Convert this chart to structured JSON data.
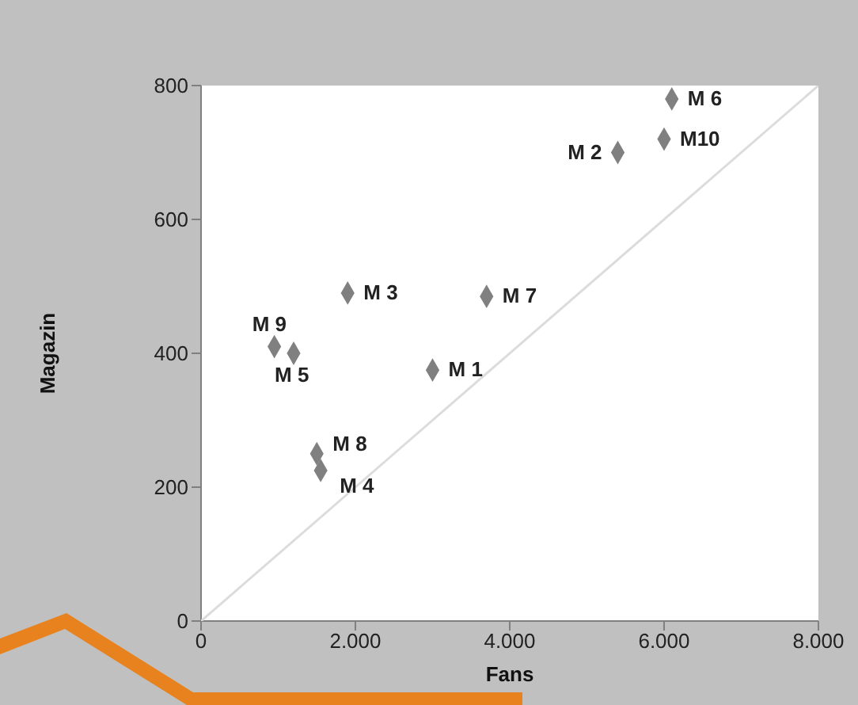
{
  "chart_data": {
    "type": "scatter",
    "xlabel": "Fans",
    "ylabel": "Magazin",
    "marker": "diamond",
    "xlim": [
      0,
      8000
    ],
    "xticks": [
      0,
      {
        "value": 2000,
        "label": "2.000"
      },
      {
        "value": 4000,
        "label": "4.000"
      },
      {
        "value": 6000,
        "label": "6.000"
      },
      {
        "value": 8000,
        "label": "8.000"
      }
    ],
    "ylim": [
      0,
      800
    ],
    "yticks": [
      0,
      200,
      400,
      600,
      800
    ],
    "series": [
      {
        "type": "line",
        "marker": "none",
        "color": "#dcdcdc",
        "x": [
          0,
          8000
        ],
        "values": [
          0,
          800
        ]
      },
      {
        "type": "scatter",
        "color": "#808080",
        "x": [
          3000,
          5400,
          1900,
          1550,
          1200,
          6100,
          3700,
          1500,
          950,
          6000
        ],
        "values": [
          375,
          700,
          490,
          225,
          400,
          780,
          485,
          250,
          410,
          720
        ]
      }
    ],
    "annotations": [
      {
        "text": "M 1",
        "x": 3000,
        "y": 375
      },
      {
        "text": "M 2",
        "x": 5400,
        "y": 700
      },
      {
        "text": "M 3",
        "x": 1900,
        "y": 490
      },
      {
        "text": "M 4",
        "x": 1550,
        "y": 225
      },
      {
        "text": "M 5",
        "x": 1200,
        "y": 400
      },
      {
        "text": "M 6",
        "x": 6100,
        "y": 780
      },
      {
        "text": "M 7",
        "x": 3700,
        "y": 485
      },
      {
        "text": "M 8",
        "x": 1500,
        "y": 250
      },
      {
        "text": "M 9",
        "x": 950,
        "y": 410
      },
      {
        "text": "M10",
        "x": 6000,
        "y": 720
      }
    ]
  }
}
